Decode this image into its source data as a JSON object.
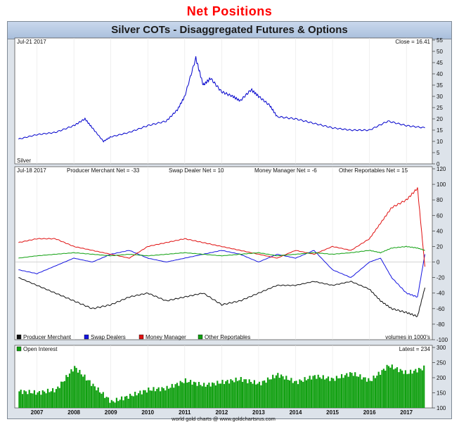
{
  "heading": "Net Positions",
  "chart_data": [
    {
      "type": "line",
      "title": "Silver COTs - Disaggregated Futures & Options",
      "date_label": "Jul-21  2017",
      "close_label": "Close = 16.41",
      "series_label": "Silver",
      "ylim": [
        0,
        55
      ],
      "yticks": [
        0,
        5,
        10,
        15,
        20,
        25,
        30,
        35,
        40,
        45,
        50,
        55
      ],
      "x": [
        2006.5,
        2007.0,
        2007.5,
        2008.0,
        2008.3,
        2008.5,
        2008.8,
        2009.0,
        2009.5,
        2010.0,
        2010.5,
        2010.8,
        2011.0,
        2011.3,
        2011.5,
        2011.7,
        2012.0,
        2012.3,
        2012.5,
        2012.8,
        2013.0,
        2013.3,
        2013.5,
        2014.0,
        2014.5,
        2015.0,
        2015.5,
        2016.0,
        2016.5,
        2017.0,
        2017.5
      ],
      "series": [
        {
          "name": "Silver",
          "color": "#0000cc",
          "values": [
            11,
            13,
            14,
            17,
            20,
            16,
            10,
            12,
            14,
            17,
            19,
            24,
            30,
            47,
            35,
            38,
            32,
            30,
            28,
            33,
            30,
            26,
            21,
            20,
            18,
            16,
            15,
            15,
            19,
            17,
            16
          ]
        }
      ]
    },
    {
      "type": "line",
      "date_label": "Jul-18  2017",
      "labels": {
        "producer": "Producer Merchant Net = -33",
        "swap": "Swap Dealer Net = 10",
        "money": "Money Manager Net = -6",
        "other": "Other Reportables Net = 15"
      },
      "volume_note": "volumes in 1000's",
      "ylim": [
        -100,
        120
      ],
      "yticks": [
        -100,
        -80,
        -60,
        -40,
        -20,
        0,
        20,
        40,
        60,
        80,
        100,
        120
      ],
      "x": [
        2006.5,
        2007.0,
        2007.5,
        2008.0,
        2008.5,
        2009.0,
        2009.5,
        2010.0,
        2010.5,
        2011.0,
        2011.5,
        2012.0,
        2012.5,
        2013.0,
        2013.5,
        2014.0,
        2014.5,
        2015.0,
        2015.5,
        2016.0,
        2016.3,
        2016.6,
        2017.0,
        2017.3,
        2017.5
      ],
      "series": [
        {
          "name": "Producer Merchant",
          "color": "#111111",
          "values": [
            -20,
            -30,
            -40,
            -50,
            -60,
            -55,
            -45,
            -40,
            -50,
            -45,
            -40,
            -55,
            -50,
            -40,
            -30,
            -30,
            -25,
            -30,
            -25,
            -35,
            -50,
            -60,
            -65,
            -70,
            -33
          ]
        },
        {
          "name": "Swap Dealers",
          "color": "#1515e0",
          "values": [
            -10,
            -15,
            -5,
            5,
            0,
            10,
            15,
            5,
            0,
            5,
            10,
            15,
            10,
            0,
            10,
            5,
            15,
            -10,
            -20,
            0,
            5,
            -20,
            -40,
            -45,
            10
          ]
        },
        {
          "name": "Money Manager",
          "color": "#e01010",
          "values": [
            25,
            30,
            30,
            20,
            15,
            10,
            5,
            20,
            25,
            30,
            25,
            20,
            15,
            10,
            5,
            15,
            10,
            20,
            15,
            30,
            50,
            70,
            80,
            95,
            -6
          ]
        },
        {
          "name": "Other Reportables",
          "color": "#10a010",
          "values": [
            5,
            8,
            10,
            12,
            10,
            8,
            10,
            8,
            10,
            12,
            10,
            8,
            10,
            12,
            8,
            10,
            12,
            10,
            12,
            15,
            12,
            18,
            20,
            18,
            15
          ]
        }
      ],
      "legend": [
        {
          "name": "Producer Merchant",
          "color": "#111111"
        },
        {
          "name": "Swap Dealers",
          "color": "#1515e0"
        },
        {
          "name": "Money Manager",
          "color": "#e01010"
        },
        {
          "name": "Other Reportables",
          "color": "#10a010"
        }
      ]
    },
    {
      "type": "bar",
      "legend": "Open Interest",
      "latest_label": "Latest = 234",
      "ylim": [
        100,
        300
      ],
      "yticks": [
        100,
        150,
        200,
        250,
        300
      ],
      "bar_color": "#10a010",
      "x": [
        2006.5,
        2007.0,
        2007.5,
        2008.0,
        2008.5,
        2009.0,
        2009.5,
        2010.0,
        2010.5,
        2011.0,
        2011.5,
        2012.0,
        2012.5,
        2013.0,
        2013.5,
        2014.0,
        2014.5,
        2015.0,
        2015.5,
        2016.0,
        2016.5,
        2017.0,
        2017.5
      ],
      "values": [
        155,
        150,
        160,
        235,
        175,
        120,
        140,
        160,
        165,
        190,
        175,
        185,
        195,
        180,
        210,
        185,
        205,
        195,
        215,
        190,
        240,
        215,
        234
      ],
      "xticks": [
        "2007",
        "2008",
        "2009",
        "2010",
        "2011",
        "2012",
        "2013",
        "2014",
        "2015",
        "2016",
        "2017"
      ],
      "footer": "world gold charts @ www.goldchartsrus.com"
    }
  ]
}
